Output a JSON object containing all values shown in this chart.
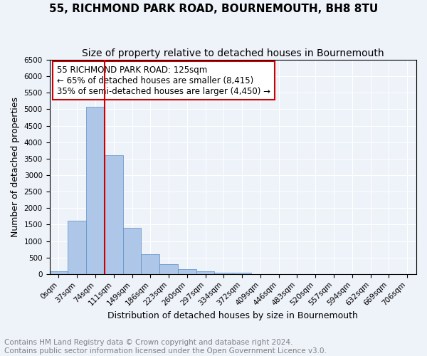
{
  "title": "55, RICHMOND PARK ROAD, BOURNEMOUTH, BH8 8TU",
  "subtitle": "Size of property relative to detached houses in Bournemouth",
  "xlabel": "Distribution of detached houses by size in Bournemouth",
  "ylabel": "Number of detached properties",
  "bin_labels": [
    "0sqm",
    "37sqm",
    "74sqm",
    "111sqm",
    "149sqm",
    "186sqm",
    "223sqm",
    "260sqm",
    "297sqm",
    "334sqm",
    "372sqm",
    "409sqm",
    "446sqm",
    "483sqm",
    "520sqm",
    "557sqm",
    "594sqm",
    "632sqm",
    "669sqm",
    "706sqm"
  ],
  "bar_values": [
    75,
    1625,
    5075,
    3600,
    1400,
    600,
    300,
    140,
    75,
    50,
    40,
    0,
    0,
    0,
    0,
    0,
    0,
    0,
    0,
    0
  ],
  "bar_color": "#aec6e8",
  "bar_edge_color": "#5a8fc4",
  "vline_x_idx": 3,
  "vline_color": "#cc0000",
  "annotation_text": "55 RICHMOND PARK ROAD: 125sqm\n← 65% of detached houses are smaller (8,415)\n35% of semi-detached houses are larger (4,450) →",
  "annotation_box_color": "#ffffff",
  "annotation_box_edge": "#cc0000",
  "ylim": [
    0,
    6500
  ],
  "yticks": [
    0,
    500,
    1000,
    1500,
    2000,
    2500,
    3000,
    3500,
    4000,
    4500,
    5000,
    5500,
    6000,
    6500
  ],
  "footer_line1": "Contains HM Land Registry data © Crown copyright and database right 2024.",
  "footer_line2": "Contains public sector information licensed under the Open Government Licence v3.0.",
  "background_color": "#eef2f9",
  "grid_color": "#ffffff",
  "title_fontsize": 11,
  "subtitle_fontsize": 10,
  "axis_label_fontsize": 9,
  "tick_fontsize": 7.5,
  "annotation_fontsize": 8.5,
  "footer_fontsize": 7.5
}
